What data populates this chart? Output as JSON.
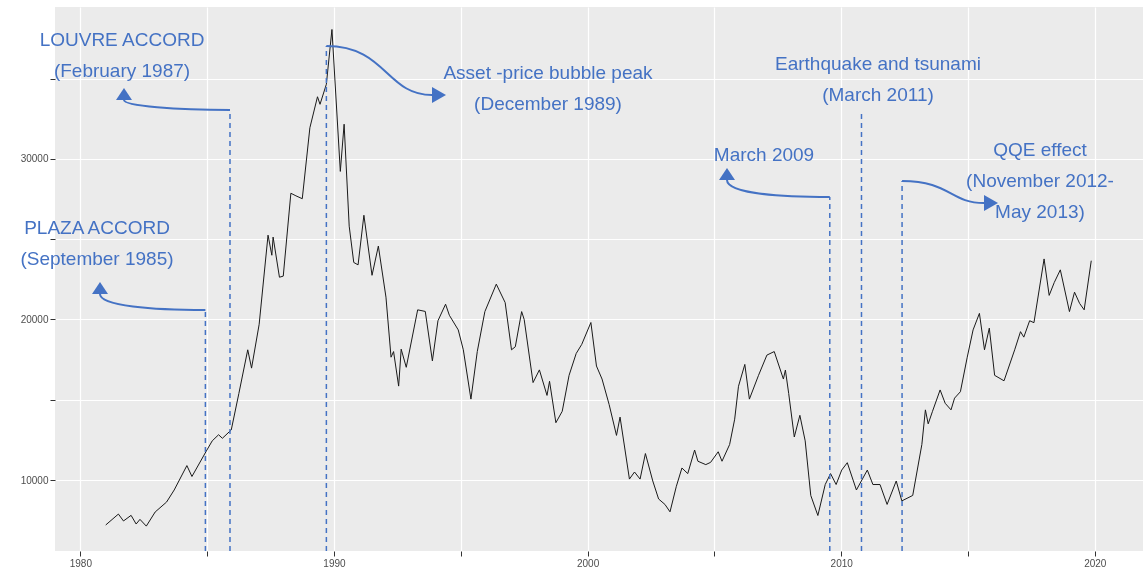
{
  "chart_data": {
    "type": "line",
    "xlim": [
      1979,
      2021.9
    ],
    "ylim": [
      5580,
      39460
    ],
    "xticks": [
      1980,
      {
        "value": 1985,
        "label": null
      },
      1990,
      {
        "value": 1995,
        "label": null
      },
      2000,
      {
        "value": 2005,
        "label": null
      },
      2010,
      {
        "value": 2015,
        "label": null
      },
      2020
    ],
    "yticks": [
      10000,
      {
        "value": 15000,
        "label": null
      },
      20000,
      {
        "value": 25000,
        "label": null
      },
      30000,
      {
        "value": 35000,
        "label": null
      }
    ],
    "grid": true,
    "series": [
      {
        "color": "#1a1a1a",
        "x": [
          1981.0,
          1981.5,
          1981.7,
          1982.0,
          1982.2,
          1982.35,
          1982.6,
          1982.95,
          1983.4,
          1983.7,
          1984.2,
          1984.4,
          1984.95,
          1985.2,
          1985.45,
          1985.6,
          1985.95,
          1986.25,
          1986.6,
          1986.75,
          1987.05,
          1987.4,
          1987.55,
          1987.6,
          1987.85,
          1988.0,
          1988.3,
          1988.5,
          1988.75,
          1989.05,
          1989.35,
          1989.45,
          1989.7,
          1989.92,
          1990.25,
          1990.4,
          1990.6,
          1990.78,
          1990.95,
          1991.18,
          1991.5,
          1991.75,
          1992.05,
          1992.25,
          1992.35,
          1992.55,
          1992.65,
          1992.85,
          1993.3,
          1993.6,
          1993.88,
          1994.1,
          1994.4,
          1994.55,
          1994.9,
          1995.1,
          1995.4,
          1995.65,
          1995.95,
          1996.4,
          1996.75,
          1997.0,
          1997.15,
          1997.4,
          1997.5,
          1997.85,
          1998.1,
          1998.4,
          1998.5,
          1998.75,
          1999.0,
          1999.27,
          1999.55,
          1999.77,
          2000.13,
          2000.35,
          2000.57,
          2000.85,
          2001.14,
          2001.28,
          2001.65,
          2001.85,
          2002.07,
          2002.28,
          2002.57,
          2002.8,
          2003.05,
          2003.25,
          2003.5,
          2003.72,
          2003.95,
          2004.22,
          2004.35,
          2004.66,
          2004.85,
          2005.15,
          2005.3,
          2005.6,
          2005.8,
          2005.95,
          2006.2,
          2006.38,
          2006.74,
          2007.07,
          2007.36,
          2007.72,
          2007.8,
          2007.93,
          2008.15,
          2008.37,
          2008.58,
          2008.8,
          2009.08,
          2009.37,
          2009.58,
          2009.8,
          2010.02,
          2010.24,
          2010.6,
          2011.03,
          2011.25,
          2011.53,
          2011.81,
          2012.17,
          2012.39,
          2012.82,
          2013.18,
          2013.32,
          2013.43,
          2013.6,
          2013.9,
          2014.1,
          2014.33,
          2014.47,
          2014.7,
          2014.97,
          2015.2,
          2015.45,
          2015.65,
          2015.84,
          2016.05,
          2016.42,
          2016.84,
          2017.07,
          2017.2,
          2017.43,
          2017.6,
          2018.0,
          2018.2,
          2018.4,
          2018.64,
          2019.0,
          2019.2,
          2019.4,
          2019.58,
          2019.86
        ],
        "values": [
          7200,
          7880,
          7450,
          7800,
          7260,
          7550,
          7130,
          8010,
          8630,
          9380,
          10900,
          10220,
          11760,
          12440,
          12820,
          12600,
          13120,
          15390,
          18110,
          16970,
          19700,
          25250,
          24000,
          25130,
          22630,
          22700,
          27860,
          27700,
          27520,
          31940,
          33870,
          33400,
          34650,
          38060,
          29220,
          32160,
          25810,
          23550,
          23400,
          26490,
          22750,
          24570,
          21390,
          17650,
          18000,
          15850,
          18150,
          17020,
          20600,
          20500,
          17420,
          19920,
          20950,
          20260,
          19350,
          18110,
          15040,
          18000,
          20490,
          22200,
          21050,
          18110,
          18300,
          20490,
          20000,
          16070,
          16860,
          15270,
          16150,
          13570,
          14280,
          16520,
          17880,
          18450,
          19810,
          17100,
          16290,
          14700,
          12780,
          13920,
          10060,
          10500,
          10060,
          11650,
          9940,
          8820,
          8480,
          8020,
          9610,
          10750,
          10400,
          11870,
          11170,
          10960,
          11100,
          11760,
          11170,
          12210,
          13790,
          15840,
          17200,
          15040,
          16520,
          17780,
          18000,
          16290,
          16850,
          15390,
          12680,
          14030,
          12440,
          9040,
          7790,
          9720,
          10400,
          9720,
          10620,
          11080,
          9380,
          10620,
          9720,
          9720,
          8480,
          9940,
          8700,
          9040,
          12210,
          14370,
          13500,
          14280,
          15610,
          14780,
          14370,
          15100,
          15500,
          17650,
          19350,
          20380,
          18110,
          19460,
          16520,
          16180,
          18110,
          19240,
          18900,
          19920,
          19800,
          23770,
          21500,
          22300,
          23090,
          20490,
          21700,
          21000,
          20600,
          23660
        ]
      }
    ],
    "ref_lines": [
      {
        "axis": "x",
        "value": 1984.93,
        "label": "PLAZA ACCORD\n(September 1985)",
        "color": "#4472c4",
        "line_style": "dashed"
      },
      {
        "axis": "x",
        "value": 1985.9,
        "label": "LOUVRE ACCORD\n(February 1987)",
        "color": "#4472c4",
        "line_style": "dashed"
      },
      {
        "axis": "x",
        "value": 1989.7,
        "label": "Asset -price bubble peak\n(December 1989)",
        "color": "#4472c4",
        "line_style": "dashed"
      },
      {
        "axis": "x",
        "value": 2009.55,
        "label": "March 2009",
        "color": "#4472c4",
        "line_style": "dashed"
      },
      {
        "axis": "x",
        "value": 2010.8,
        "label": "Earthquake and tsunami\n(March 2011)",
        "color": "#4472c4",
        "line_style": "dashed"
      },
      {
        "axis": "x",
        "value": 2012.4,
        "label": "QQE effect\n(November 2012-\nMay 2013)",
        "color": "#4472c4",
        "line_style": "dashed"
      }
    ]
  }
}
